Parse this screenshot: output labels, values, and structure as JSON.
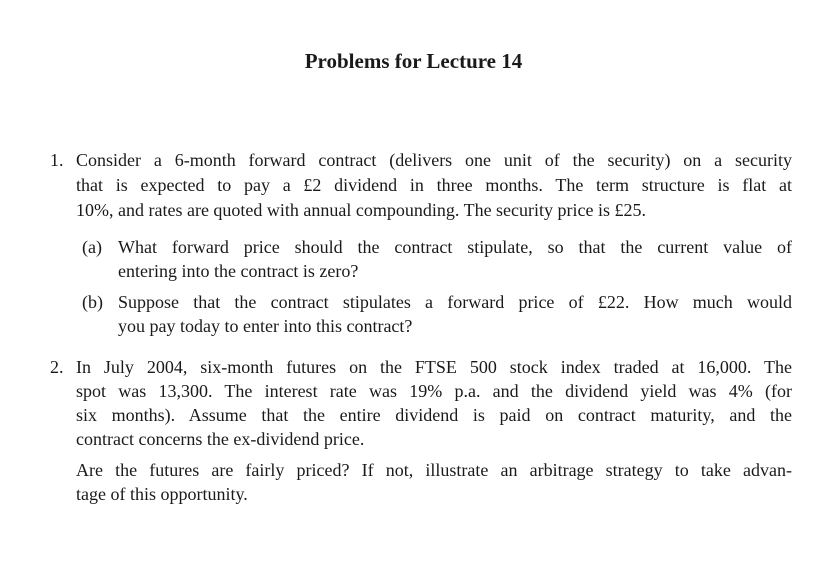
{
  "title": "Problems for Lecture 14",
  "problems": [
    {
      "number": "1.",
      "lines": [
        "Consider a 6-month forward contract (delivers one unit of the security) on a security",
        "that is expected to pay a £2 dividend in three months. The term structure is flat at",
        "10%, and rates are quoted with annual compounding. The security price is £25."
      ],
      "parts": [
        {
          "label": "(a)",
          "lines": [
            "What forward price should the contract stipulate, so that the current value of",
            "entering into the contract is zero?"
          ]
        },
        {
          "label": "(b)",
          "lines": [
            "Suppose that the contract stipulates a forward price of £22. How much would",
            "you pay today to enter into this contract?"
          ]
        }
      ]
    },
    {
      "number": "2.",
      "lines": [
        "In July 2004, six-month futures on the FTSE 500 stock index traded at 16,000. The",
        "spot was 13,300. The interest rate was 19% p.a. and the dividend yield was 4% (for",
        "six months). Assume that the entire dividend is paid on contract maturity, and the",
        "contract concerns the ex-dividend price."
      ],
      "followup": [
        "Are the futures are fairly priced? If not, illustrate an arbitrage strategy to take advan-",
        "tage of this opportunity."
      ]
    }
  ]
}
